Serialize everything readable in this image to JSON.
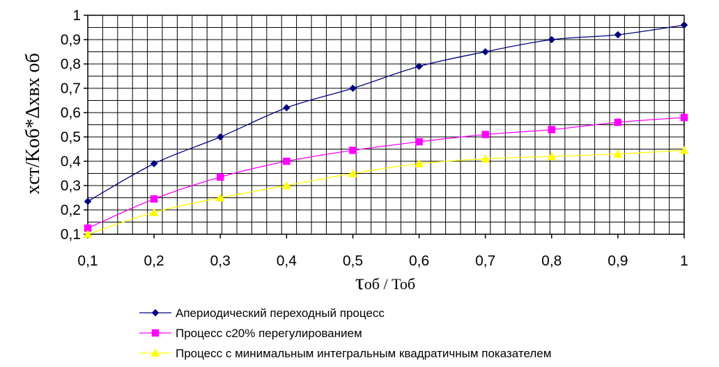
{
  "chart_data": {
    "type": "line",
    "xlabel_main": "τ",
    "xlabel_rest": "об / Тоб",
    "ylabel": "xст/Kоб*Δxвх об",
    "x": [
      0.1,
      0.2,
      0.3,
      0.4,
      0.5,
      0.6,
      0.7,
      0.8,
      0.9,
      1.0
    ],
    "xlim": [
      0.1,
      1.0
    ],
    "ylim": [
      0.1,
      1.0
    ],
    "x_tick_labels": [
      "0,1",
      "0,2",
      "0,3",
      "0,4",
      "0,5",
      "0,6",
      "0,7",
      "0,8",
      "0,9",
      "1"
    ],
    "y_tick_values": [
      0.1,
      0.2,
      0.3,
      0.4,
      0.5,
      0.6,
      0.7,
      0.8,
      0.9,
      1.0
    ],
    "y_tick_labels": [
      "0,1",
      "0,2",
      "0,3",
      "0,4",
      "0,5",
      "0,6",
      "0,7",
      "0,8",
      "0,9",
      "1"
    ],
    "grid": true,
    "legend_position": "bottom",
    "series": [
      {
        "name": "Апериодический переходный процесс",
        "color": "#000080",
        "marker": "diamond",
        "values": [
          0.235,
          0.39,
          0.5,
          0.62,
          0.7,
          0.79,
          0.85,
          0.9,
          0.92,
          0.96
        ]
      },
      {
        "name": "Процесс с20% перегулированием",
        "color": "#ff00ff",
        "marker": "square",
        "values": [
          0.125,
          0.245,
          0.335,
          0.4,
          0.445,
          0.48,
          0.51,
          0.53,
          0.56,
          0.58
        ]
      },
      {
        "name": "Процесс с минимальным интегральным квадратичным показателем",
        "color": "#ffff00",
        "marker": "triangle",
        "values": [
          0.1,
          0.19,
          0.25,
          0.3,
          0.35,
          0.39,
          0.41,
          0.42,
          0.43,
          0.445
        ]
      }
    ]
  }
}
